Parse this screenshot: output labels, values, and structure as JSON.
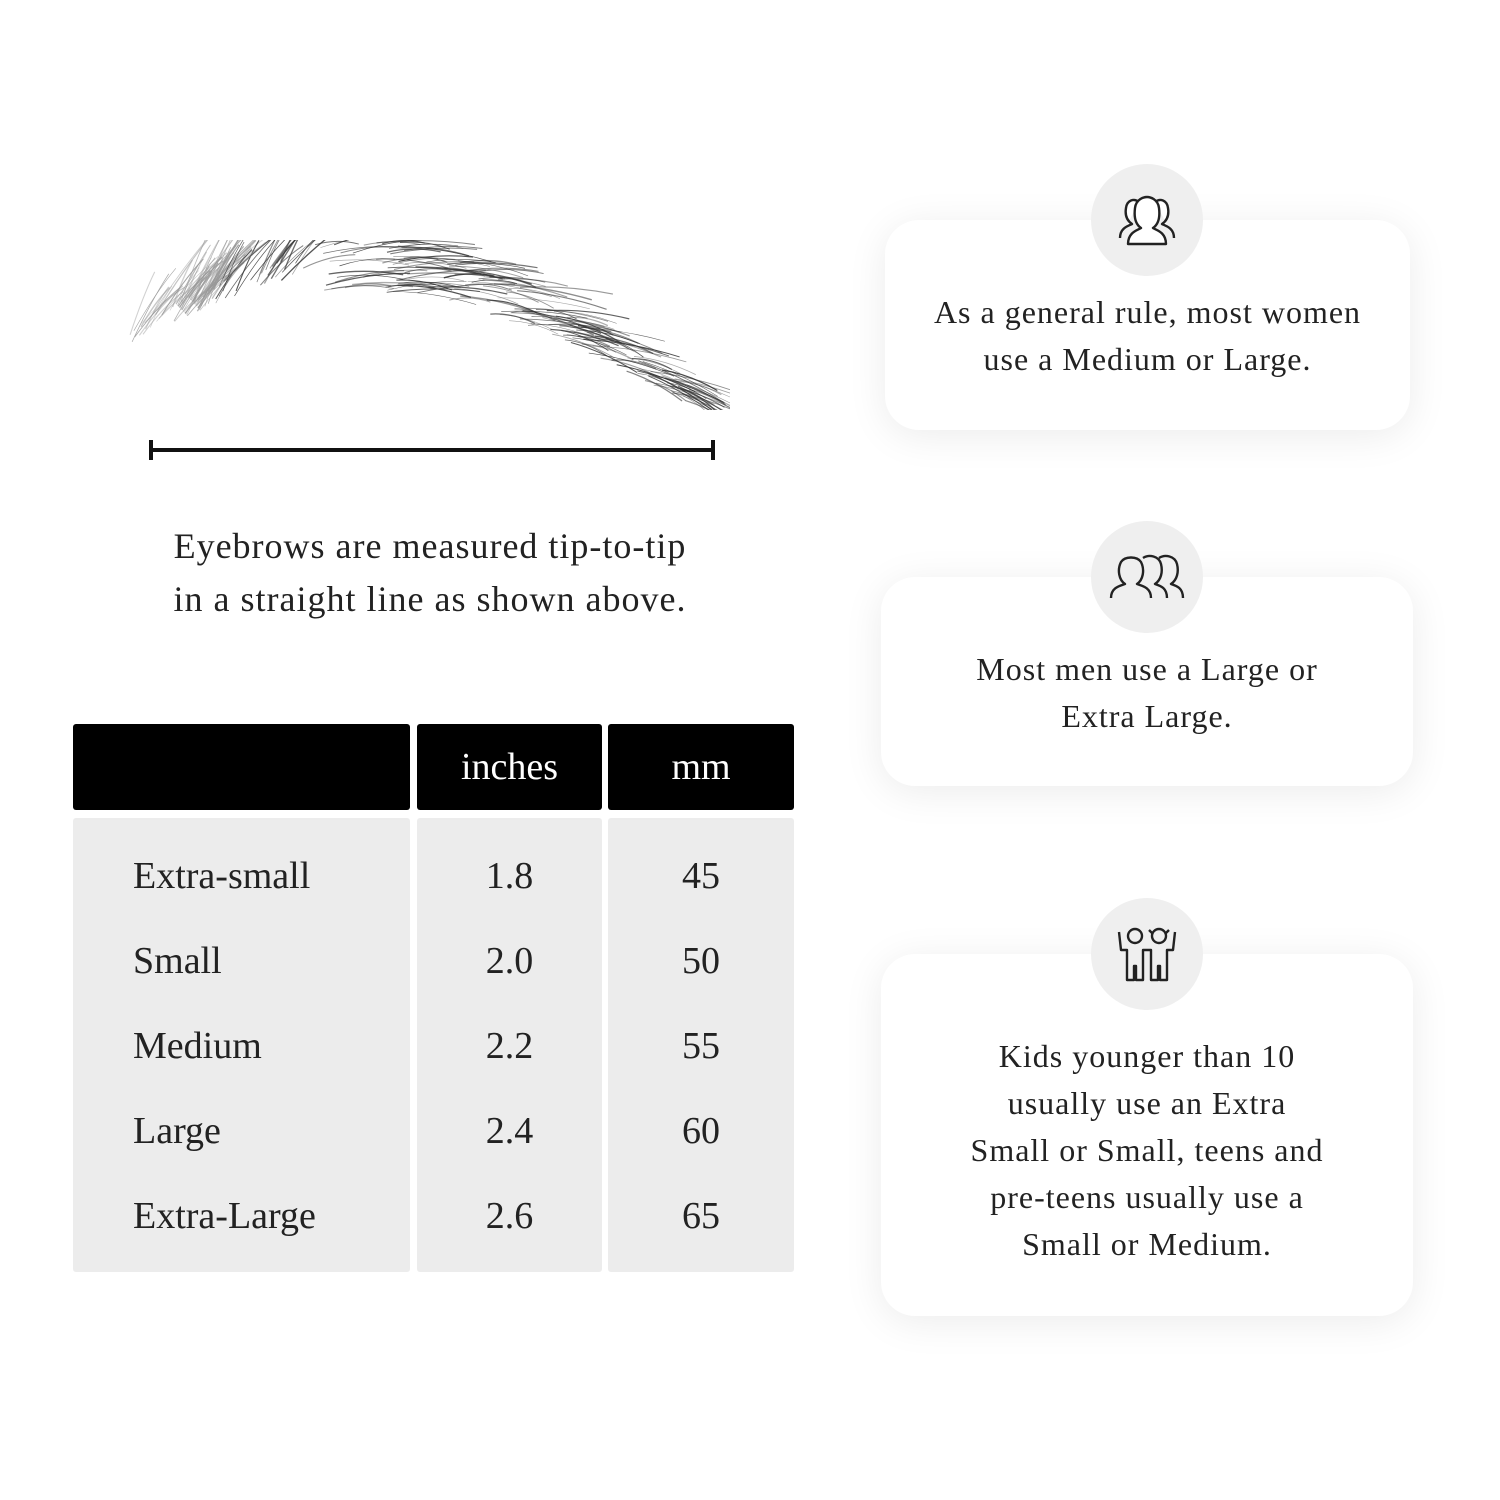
{
  "caption": {
    "line1": "Eyebrows are measured tip-to-tip",
    "line2": "in a straight line as shown above."
  },
  "table": {
    "headers": [
      "",
      "inches",
      "mm"
    ],
    "rows": [
      {
        "size": "Extra-small",
        "inches": "1.8",
        "mm": "45"
      },
      {
        "size": "Small",
        "inches": "2.0",
        "mm": "50"
      },
      {
        "size": "Medium",
        "inches": "2.2",
        "mm": "55"
      },
      {
        "size": "Large",
        "inches": "2.4",
        "mm": "60"
      },
      {
        "size": "Extra-Large",
        "inches": "2.6",
        "mm": "65"
      }
    ]
  },
  "cards": [
    {
      "icon": "women-group-icon",
      "lines": [
        "As a general rule, most women",
        "use a Medium or Large."
      ]
    },
    {
      "icon": "men-group-icon",
      "lines": [
        "Most men use a Large or",
        "Extra Large."
      ]
    },
    {
      "icon": "kids-icon",
      "lines": [
        "Kids younger than 10",
        "usually use an Extra",
        "Small or Small, teens and",
        "pre-teens usually use a",
        "Small or Medium."
      ]
    }
  ]
}
